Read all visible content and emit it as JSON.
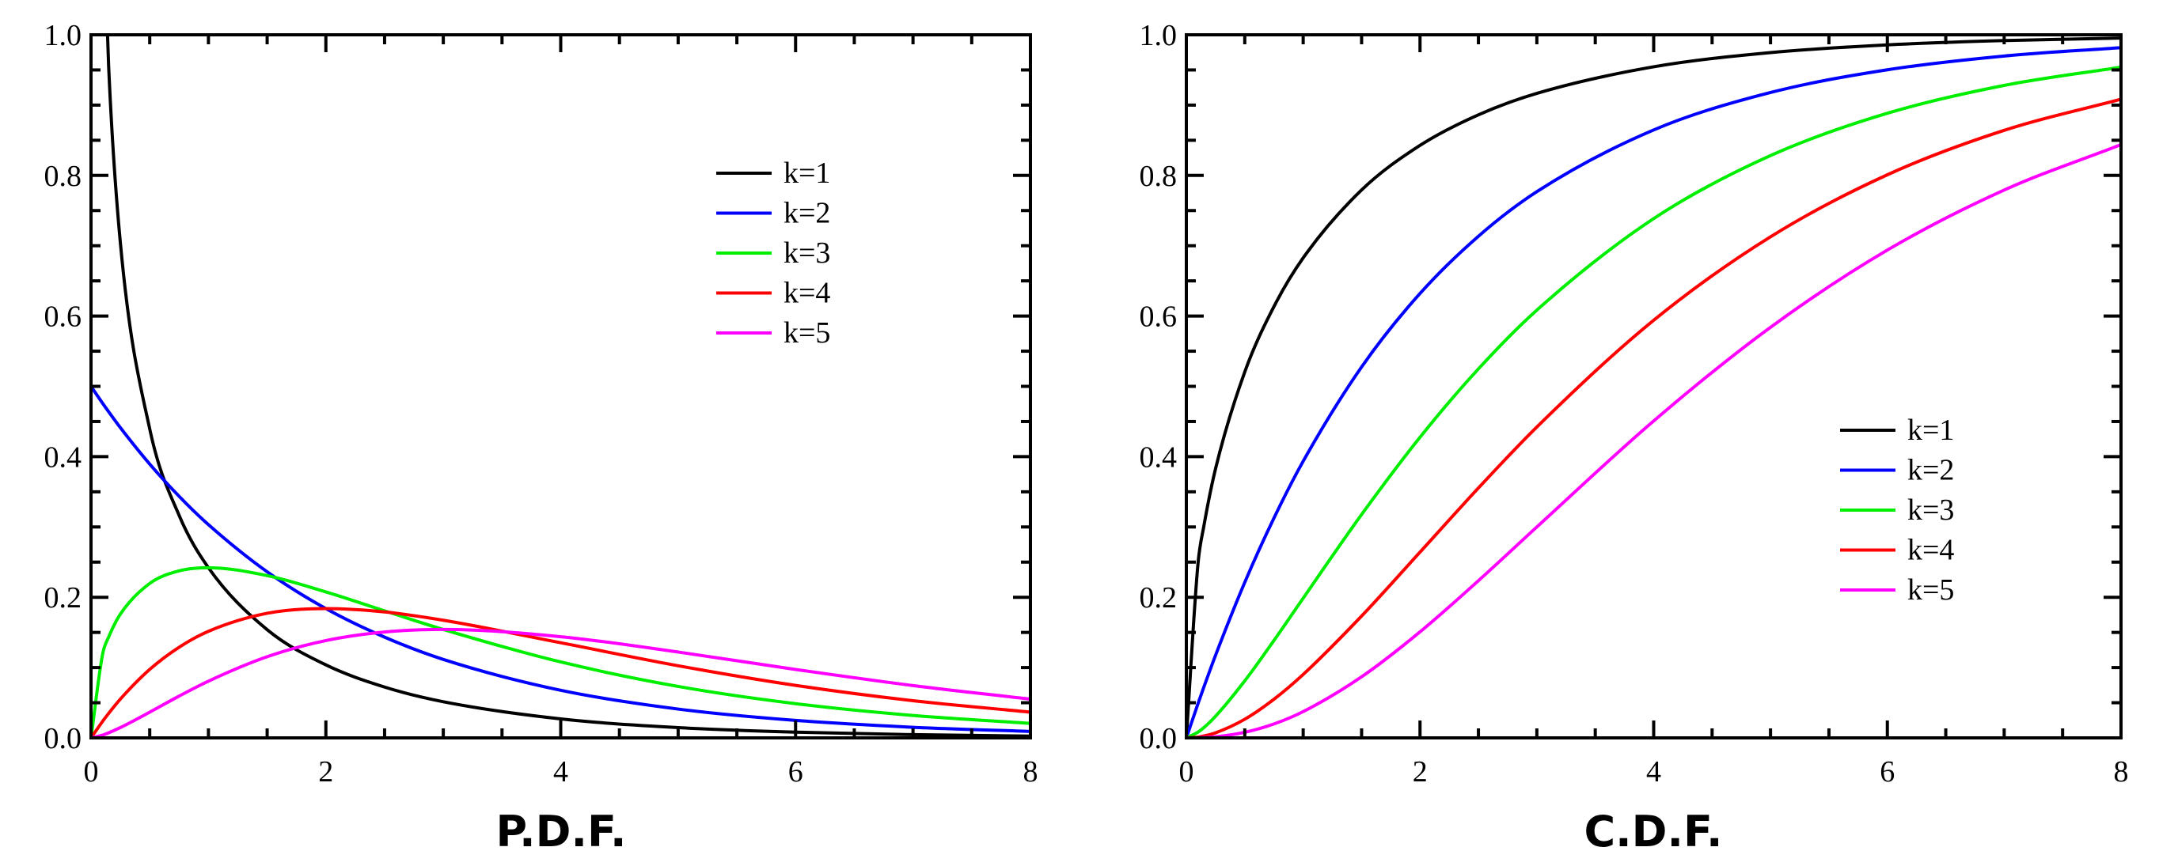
{
  "chart_data": [
    {
      "type": "line",
      "title": "P.D.F.",
      "xlim": [
        0,
        8
      ],
      "ylim": [
        0,
        1.0
      ],
      "x_ticks": [
        "0",
        "2",
        "4",
        "6",
        "8"
      ],
      "y_ticks": [
        "0.0",
        "0.2",
        "0.4",
        "0.6",
        "0.8",
        "1.0"
      ],
      "grid": false,
      "legend_position": "top-right",
      "x": [
        0,
        0.1,
        0.15,
        0.25,
        0.5,
        0.75,
        1,
        1.5,
        2,
        2.5,
        3,
        4,
        5,
        6,
        7,
        8
      ],
      "series": [
        {
          "name": "k=1",
          "color": "#000000",
          "values": [
            null,
            1.2,
            0.9556,
            0.7041,
            0.4394,
            0.3166,
            0.242,
            0.1539,
            0.1038,
            0.0723,
            0.0514,
            0.027,
            0.0146,
            0.0081,
            0.0046,
            0.0026
          ]
        },
        {
          "name": "k=2",
          "color": "#0000ff",
          "values": [
            0.5,
            0.4756,
            0.4639,
            0.4412,
            0.3894,
            0.3436,
            0.3033,
            0.2362,
            0.1839,
            0.1433,
            0.1116,
            0.0677,
            0.041,
            0.0249,
            0.0151,
            0.0092
          ]
        },
        {
          "name": "k=3",
          "color": "#00ee00",
          "values": [
            0,
            0.12,
            0.1433,
            0.176,
            0.2197,
            0.2375,
            0.242,
            0.2308,
            0.2076,
            0.1807,
            0.1542,
            0.108,
            0.0732,
            0.0487,
            0.0319,
            0.0206
          ]
        },
        {
          "name": "k=4",
          "color": "#ff0000",
          "values": [
            0,
            0.0238,
            0.0348,
            0.0552,
            0.0974,
            0.1289,
            0.1516,
            0.1772,
            0.1839,
            0.1791,
            0.1673,
            0.1353,
            0.1026,
            0.0747,
            0.0529,
            0.0366
          ]
        },
        {
          "name": "k=5",
          "color": "#ff00ff",
          "values": [
            0,
            0.004,
            0.0072,
            0.0147,
            0.0366,
            0.0594,
            0.0807,
            0.1154,
            0.1384,
            0.1506,
            0.1542,
            0.1439,
            0.1221,
            0.0973,
            0.0744,
            0.0551
          ]
        }
      ]
    },
    {
      "type": "line",
      "title": "C.D.F.",
      "xlim": [
        0,
        8
      ],
      "ylim": [
        0,
        1.0
      ],
      "x_ticks": [
        "0",
        "2",
        "4",
        "6",
        "8"
      ],
      "y_ticks": [
        "0.0",
        "0.2",
        "0.4",
        "0.6",
        "0.8",
        "1.0"
      ],
      "grid": false,
      "legend_position": "center-right",
      "x": [
        0,
        0.1,
        0.15,
        0.25,
        0.5,
        0.75,
        1,
        1.5,
        2,
        2.5,
        3,
        4,
        5,
        6,
        7,
        8
      ],
      "series": [
        {
          "name": "k=1",
          "color": "#000000",
          "values": [
            0,
            0.2482,
            0.3013,
            0.3829,
            0.5205,
            0.6135,
            0.6827,
            0.7793,
            0.8427,
            0.8862,
            0.9167,
            0.9545,
            0.9747,
            0.9857,
            0.9918,
            0.9953
          ]
        },
        {
          "name": "k=2",
          "color": "#0000ff",
          "values": [
            0,
            0.0488,
            0.0723,
            0.1175,
            0.2212,
            0.3127,
            0.3935,
            0.5276,
            0.6321,
            0.7135,
            0.7769,
            0.8647,
            0.9179,
            0.9502,
            0.9698,
            0.9817
          ]
        },
        {
          "name": "k=3",
          "color": "#00ee00",
          "values": [
            0,
            0.0082,
            0.0146,
            0.0308,
            0.0811,
            0.1386,
            0.1987,
            0.3177,
            0.4276,
            0.5248,
            0.6084,
            0.7386,
            0.8282,
            0.8884,
            0.928,
            0.954
          ]
        },
        {
          "name": "k=4",
          "color": "#ff0000",
          "values": [
            0,
            0.0012,
            0.0027,
            0.0072,
            0.0265,
            0.055,
            0.0902,
            0.1733,
            0.2642,
            0.3554,
            0.4422,
            0.594,
            0.7127,
            0.8009,
            0.8641,
            0.9084
          ]
        },
        {
          "name": "k=5",
          "color": "#ff00ff",
          "values": [
            0,
            0.0002,
            0.0005,
            0.0015,
            0.0079,
            0.0198,
            0.0374,
            0.0869,
            0.1508,
            0.2236,
            0.3,
            0.4508,
            0.584,
            0.6938,
            0.7792,
            0.8438
          ]
        }
      ]
    }
  ]
}
